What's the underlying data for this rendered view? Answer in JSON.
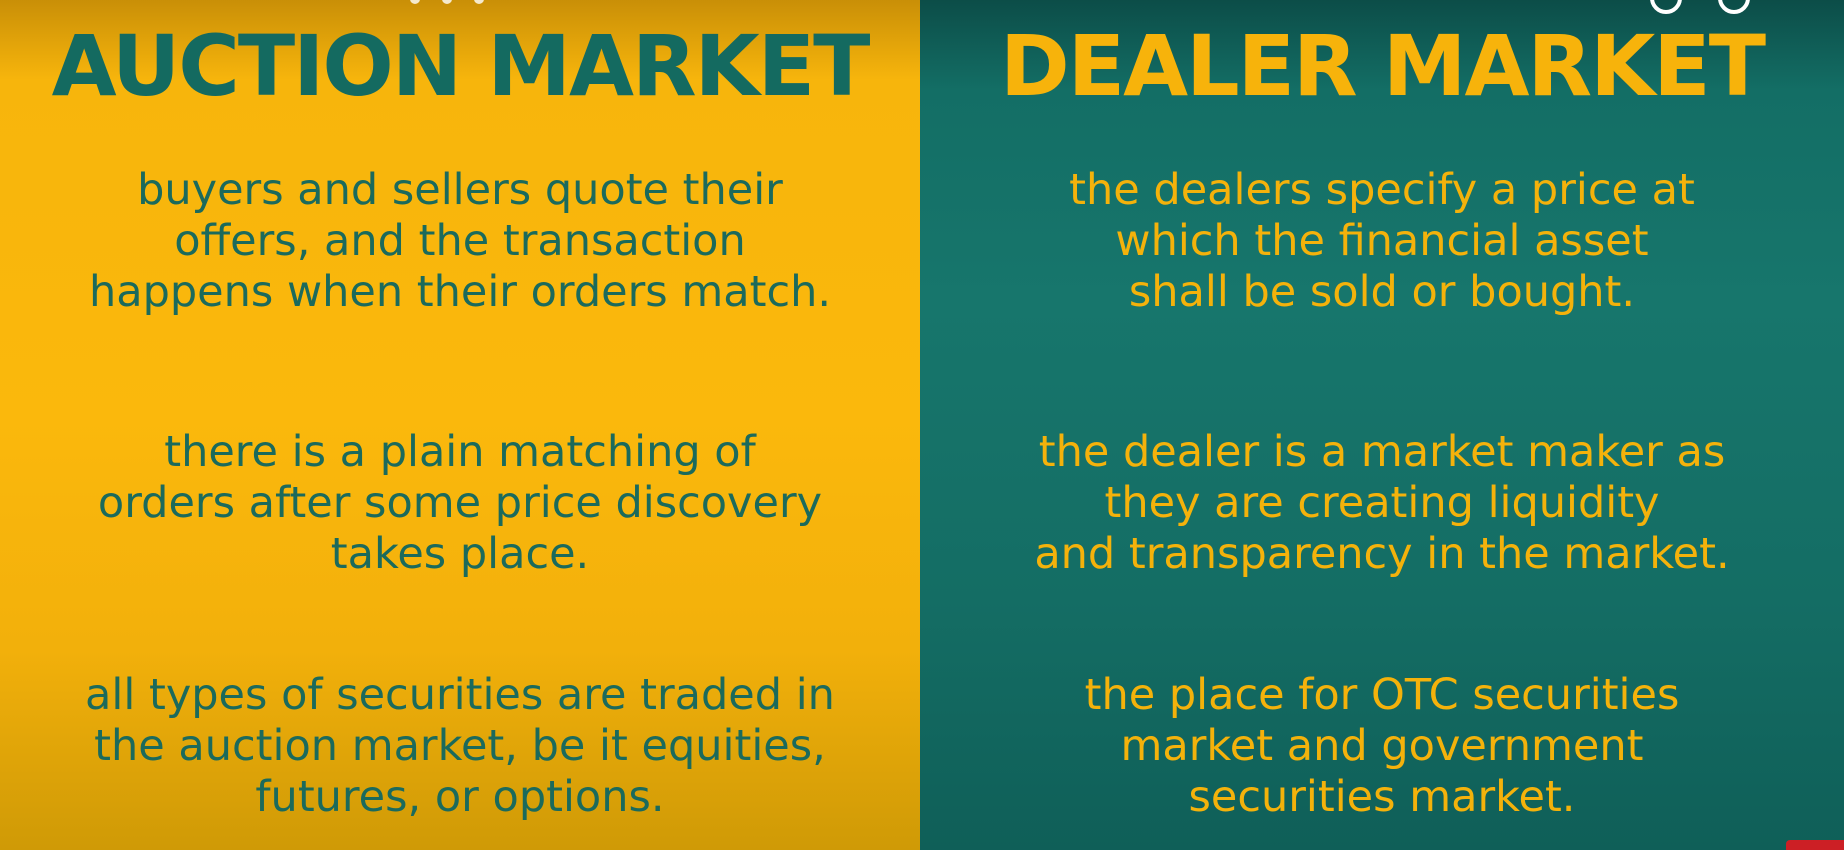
{
  "left": {
    "title": "AUCTION MARKET",
    "points": [
      "buyers and sellers quote their\noffers, and the transaction\nhappens when their orders match.",
      "there is a plain matching of\norders after some price discovery\ntakes place.",
      "all types of securities are traded in\nthe auction market, be it equities,\nfutures, or options."
    ]
  },
  "right": {
    "title": "DEALER MARKET",
    "points": [
      "the dealers specify a price at\nwhich the financial asset\nshall be sold or bought.",
      "the dealer is a market maker as\nthey are creating liquidity\nand transparency in the market.",
      "the place for OTC securities\nmarket and government\nsecurities market."
    ]
  },
  "colors": {
    "yellow": "#fbb80c",
    "teal": "#17766c",
    "red_badge": "#cc1f25"
  },
  "icons": {
    "top_left": "partial-icons",
    "top_right": [
      "circle-icon",
      "circle-icon"
    ],
    "bottom_right": "red-badge"
  }
}
